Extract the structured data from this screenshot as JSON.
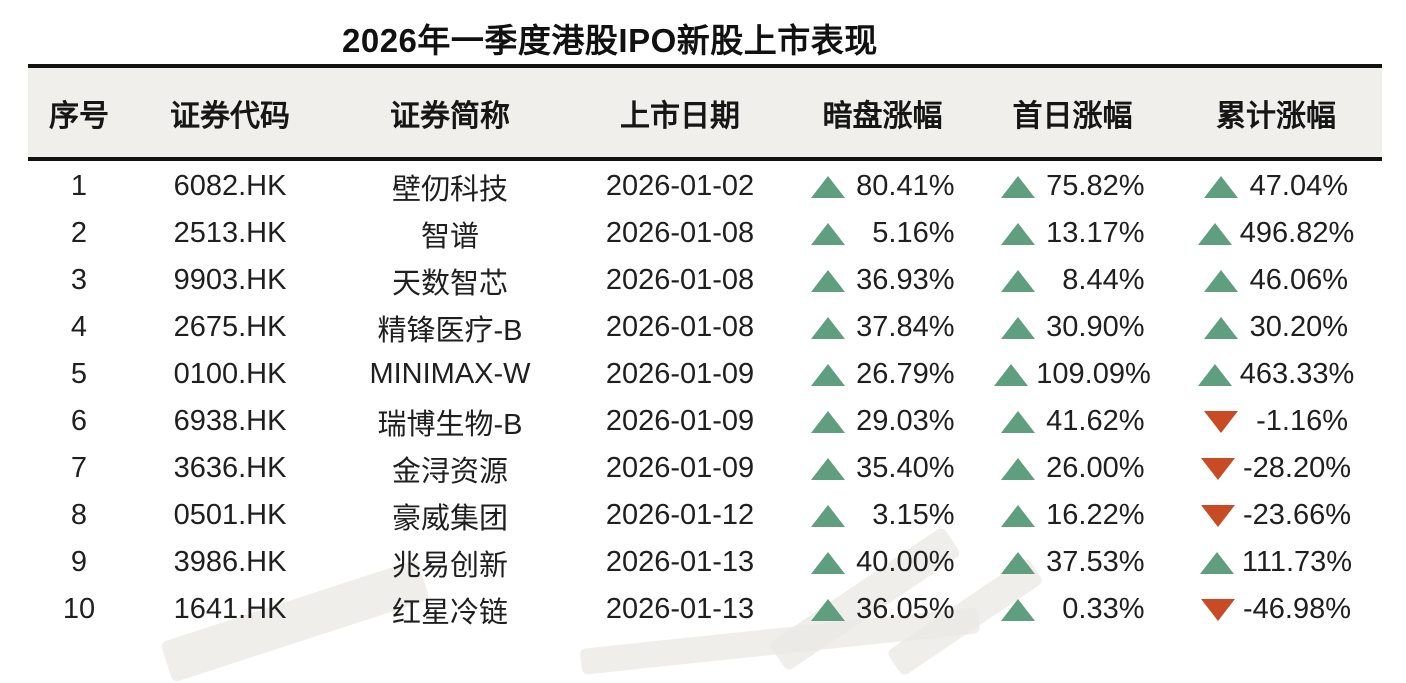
{
  "page_title": "2026年一季度港股IPO新股上市表现",
  "colors": {
    "up": "#5f9e7f",
    "down": "#c94b26",
    "header_bg": "#f0efec",
    "rule": "#121212",
    "text": "#1f1f1f"
  },
  "chart_data": {
    "type": "table",
    "title": "2026年一季度港股IPO新股上市表现",
    "headers": [
      "序号",
      "证券代码",
      "证券简称",
      "上市日期",
      "暗盘涨幅",
      "首日涨幅",
      "累计涨幅"
    ],
    "rows": [
      [
        "1",
        "6082.HK",
        "壁仞科技",
        "2026-01-02",
        "80.41%",
        "75.82%",
        "47.04%"
      ],
      [
        "2",
        "2513.HK",
        "智谱",
        "2026-01-08",
        "5.16%",
        "13.17%",
        "496.82%"
      ],
      [
        "3",
        "9903.HK",
        "天数智芯",
        "2026-01-08",
        "36.93%",
        "8.44%",
        "46.06%"
      ],
      [
        "4",
        "2675.HK",
        "精锋医疗-B",
        "2026-01-08",
        "37.84%",
        "30.90%",
        "30.20%"
      ],
      [
        "5",
        "0100.HK",
        "MINIMAX-W",
        "2026-01-09",
        "26.79%",
        "109.09%",
        "463.33%"
      ],
      [
        "6",
        "6938.HK",
        "瑞博生物-B",
        "2026-01-09",
        "29.03%",
        "41.62%",
        "-1.16%"
      ],
      [
        "7",
        "3636.HK",
        "金浔资源",
        "2026-01-09",
        "35.40%",
        "26.00%",
        "-28.20%"
      ],
      [
        "8",
        "0501.HK",
        "豪威集团",
        "2026-01-12",
        "3.15%",
        "16.22%",
        "-23.66%"
      ],
      [
        "9",
        "3986.HK",
        "兆易创新",
        "2026-01-13",
        "40.00%",
        "37.53%",
        "111.73%"
      ],
      [
        "10",
        "1641.HK",
        "红星冷链",
        "2026-01-13",
        "36.05%",
        "0.33%",
        "-46.98%"
      ]
    ]
  }
}
